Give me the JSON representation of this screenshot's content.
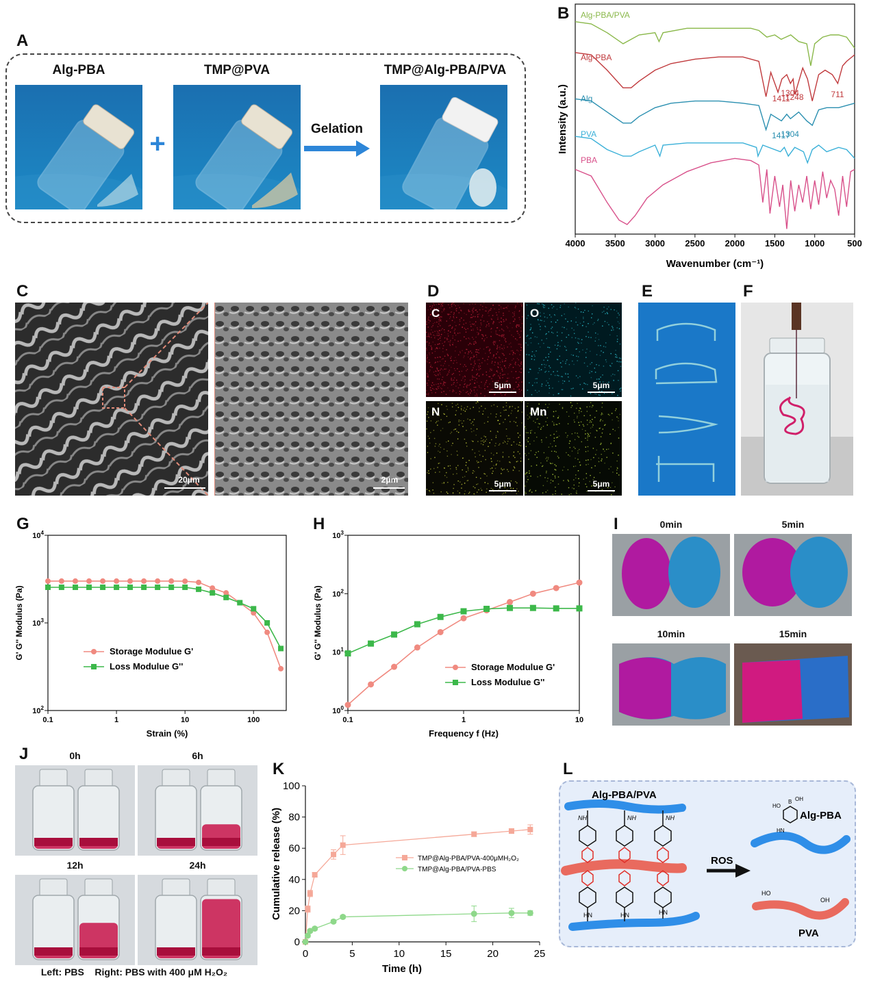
{
  "panels": {
    "A": {
      "letter": "A",
      "vial1": "Alg-PBA",
      "plus": "+",
      "vial2": "TMP@PVA",
      "arrow_label": "Gelation",
      "vial3": "TMP@Alg-PBA/PVA"
    },
    "B": {
      "letter": "B"
    },
    "C": {
      "letter": "C",
      "scale1": "20μm",
      "scale2": "2μm"
    },
    "D": {
      "letter": "D",
      "maps": [
        {
          "element": "C",
          "scale": "5μm",
          "color": "#c0203a"
        },
        {
          "element": "O",
          "scale": "5μm",
          "color": "#30c8d8"
        },
        {
          "element": "N",
          "scale": "5μm",
          "color": "#d8e040"
        },
        {
          "element": "Mn",
          "scale": "5μm",
          "color": "#c0e040"
        }
      ]
    },
    "E": {
      "letter": "E"
    },
    "F": {
      "letter": "F"
    },
    "G": {
      "letter": "G"
    },
    "H": {
      "letter": "H"
    },
    "I": {
      "letter": "I",
      "times": [
        "0min",
        "5min",
        "10min",
        "15min"
      ]
    },
    "J": {
      "letter": "J",
      "times": [
        "0h",
        "6h",
        "12h",
        "24h"
      ],
      "caption": "Left: PBS    Right: PBS with 400 μM H₂O₂"
    },
    "K": {
      "letter": "K"
    },
    "L": {
      "letter": "L",
      "network_label": "Alg-PBA/PVA",
      "arrow_label": "ROS",
      "product1": "Alg-PBA",
      "product2": "PVA",
      "groups": {
        "nh": "NH",
        "hn": "HN",
        "ho": "HO",
        "oh": "OH",
        "b": "B"
      }
    }
  },
  "colors": {
    "alg_pba_pva": "#8ab84a",
    "alg_pba": "#c0393c",
    "alg": "#2a8fb0",
    "pva": "#3ab0d8",
    "pba": "#d8508a",
    "storage": "#f08a80",
    "loss": "#3cb84a",
    "release_h2o2": "#f5a898",
    "release_pbs": "#8ed88a"
  },
  "chart_data": [
    {
      "id": "B",
      "type": "line",
      "xlabel": "Wavenumber (cm⁻¹)",
      "ylabel": "Intensity (a.u.)",
      "xlim": [
        4000,
        500
      ],
      "x_ticks": [
        4000,
        3500,
        3000,
        2500,
        2000,
        1500,
        1000,
        500
      ],
      "series": [
        {
          "name": "Alg-PBA/PVA",
          "x": [
            4000,
            3800,
            3600,
            3400,
            3200,
            3000,
            2950,
            2900,
            2600,
            2200,
            1800,
            1700,
            1600,
            1500,
            1420,
            1300,
            1200,
            1100,
            1050,
            1000,
            900,
            800,
            700,
            600,
            500
          ],
          "y": [
            0.92,
            0.91,
            0.87,
            0.82,
            0.86,
            0.87,
            0.83,
            0.87,
            0.89,
            0.89,
            0.89,
            0.88,
            0.85,
            0.86,
            0.84,
            0.86,
            0.83,
            0.82,
            0.72,
            0.82,
            0.85,
            0.86,
            0.86,
            0.85,
            0.8
          ]
        },
        {
          "name": "Alg-PBA",
          "x": [
            4000,
            3800,
            3600,
            3400,
            3300,
            3200,
            3000,
            2800,
            2500,
            2200,
            1900,
            1700,
            1610,
            1550,
            1460,
            1411,
            1350,
            1304,
            1270,
            1248,
            1150,
            1090,
            1030,
            950,
            870,
            780,
            711,
            650,
            600,
            500
          ],
          "y": [
            0.78,
            0.77,
            0.7,
            0.62,
            0.62,
            0.65,
            0.7,
            0.73,
            0.75,
            0.76,
            0.76,
            0.74,
            0.58,
            0.69,
            0.6,
            0.66,
            0.68,
            0.64,
            0.66,
            0.59,
            0.71,
            0.66,
            0.56,
            0.68,
            0.7,
            0.68,
            0.64,
            0.72,
            0.74,
            0.77
          ]
        },
        {
          "name": "Alg",
          "x": [
            4000,
            3800,
            3600,
            3400,
            3300,
            3200,
            3000,
            2800,
            2500,
            2200,
            1900,
            1700,
            1610,
            1550,
            1417,
            1350,
            1304,
            1200,
            1100,
            1030,
            950,
            850,
            700,
            600,
            500
          ],
          "y": [
            0.57,
            0.56,
            0.51,
            0.46,
            0.46,
            0.49,
            0.53,
            0.55,
            0.56,
            0.56,
            0.55,
            0.54,
            0.43,
            0.5,
            0.47,
            0.5,
            0.48,
            0.51,
            0.47,
            0.45,
            0.52,
            0.53,
            0.53,
            0.54,
            0.55
          ]
        },
        {
          "name": "PVA",
          "x": [
            4000,
            3800,
            3600,
            3400,
            3300,
            3200,
            3000,
            2940,
            2900,
            2600,
            2200,
            1900,
            1730,
            1710,
            1650,
            1430,
            1380,
            1330,
            1250,
            1140,
            1090,
            1030,
            950,
            850,
            700,
            600,
            500
          ],
          "y": [
            0.4,
            0.39,
            0.34,
            0.31,
            0.31,
            0.33,
            0.36,
            0.31,
            0.36,
            0.37,
            0.37,
            0.37,
            0.35,
            0.31,
            0.36,
            0.33,
            0.35,
            0.31,
            0.35,
            0.33,
            0.28,
            0.34,
            0.36,
            0.33,
            0.35,
            0.34,
            0.3
          ]
        },
        {
          "name": "PBA",
          "x": [
            4000,
            3800,
            3600,
            3450,
            3350,
            3250,
            3100,
            2900,
            2600,
            2300,
            2000,
            1800,
            1700,
            1650,
            1600,
            1560,
            1500,
            1440,
            1400,
            1350,
            1300,
            1250,
            1200,
            1150,
            1100,
            1050,
            1000,
            950,
            900,
            850,
            800,
            750,
            700,
            650,
            600,
            550,
            500
          ],
          "y": [
            0.25,
            0.22,
            0.1,
            0.02,
            0.0,
            0.04,
            0.12,
            0.18,
            0.24,
            0.28,
            0.3,
            0.29,
            0.27,
            0.1,
            0.25,
            0.05,
            0.22,
            0.08,
            0.18,
            -0.02,
            0.2,
            0.06,
            0.18,
            0.1,
            0.22,
            0.07,
            0.2,
            0.09,
            0.24,
            0.12,
            0.2,
            0.16,
            0.04,
            0.22,
            0.08,
            0.24,
            0.25
          ]
        }
      ],
      "annotations": [
        {
          "text": "1411",
          "x": 1411,
          "series": "Alg-PBA"
        },
        {
          "text": "1304",
          "x": 1304,
          "series": "Alg-PBA"
        },
        {
          "text": "1248",
          "x": 1248,
          "series": "Alg-PBA"
        },
        {
          "text": "711",
          "x": 711,
          "series": "Alg-PBA"
        },
        {
          "text": "1417",
          "x": 1417,
          "series": "Alg"
        },
        {
          "text": "1304",
          "x": 1304,
          "series": "Alg"
        }
      ]
    },
    {
      "id": "G",
      "type": "line",
      "xlabel": "Strain  (%)",
      "ylabel": "G' G'' Modulus (Pa)",
      "xscale": "log",
      "yscale": "log",
      "xlim": [
        0.1,
        300
      ],
      "ylim": [
        100,
        10000
      ],
      "x_ticks": [
        0.1,
        1,
        10,
        100
      ],
      "y_ticks": [
        100,
        1000,
        10000
      ],
      "legend": "center-left",
      "series": [
        {
          "name": "Storage Modulue G'",
          "x": [
            0.1,
            0.158,
            0.251,
            0.398,
            0.631,
            1,
            1.58,
            2.51,
            3.98,
            6.31,
            10,
            15.8,
            25.1,
            39.8,
            63.1,
            100,
            158,
            250
          ],
          "y": [
            3000,
            3000,
            3000,
            3000,
            3000,
            3000,
            3000,
            3000,
            3000,
            3000,
            2990,
            2900,
            2500,
            2200,
            1700,
            1300,
            780,
            300
          ]
        },
        {
          "name": "Loss Modulue G''",
          "x": [
            0.1,
            0.158,
            0.251,
            0.398,
            0.631,
            1,
            1.58,
            2.51,
            3.98,
            6.31,
            10,
            15.8,
            25.1,
            39.8,
            63.1,
            100,
            158,
            250
          ],
          "y": [
            2550,
            2550,
            2550,
            2550,
            2550,
            2550,
            2550,
            2550,
            2550,
            2550,
            2550,
            2420,
            2200,
            1950,
            1700,
            1450,
            1000,
            510
          ]
        }
      ]
    },
    {
      "id": "H",
      "type": "line",
      "xlabel": "Frequency f (Hz)",
      "ylabel": "G' G'' Modulus (Pa)",
      "xscale": "log",
      "yscale": "log",
      "xlim": [
        0.1,
        10
      ],
      "ylim": [
        1,
        1000
      ],
      "x_ticks": [
        0.1,
        1,
        10
      ],
      "y_ticks": [
        1,
        10,
        100,
        1000
      ],
      "legend": "lower-right",
      "series": [
        {
          "name": "Storage Modulue G'",
          "x": [
            0.1,
            0.158,
            0.251,
            0.398,
            0.631,
            1,
            1.58,
            2.51,
            3.98,
            6.31,
            10
          ],
          "y": [
            1.25,
            2.8,
            5.6,
            12,
            22,
            38,
            52,
            72,
            100,
            125,
            155
          ]
        },
        {
          "name": "Loss Modulue G''",
          "x": [
            0.1,
            0.158,
            0.251,
            0.398,
            0.631,
            1,
            1.58,
            2.51,
            3.98,
            6.31,
            10
          ],
          "y": [
            9.5,
            14,
            20,
            30,
            40,
            50,
            55,
            57,
            57,
            56,
            56
          ]
        }
      ]
    },
    {
      "id": "K",
      "type": "line",
      "xlabel": "Time (h)",
      "ylabel": "Cumulative release (%)",
      "xlim": [
        0,
        25
      ],
      "ylim": [
        0,
        100
      ],
      "x_ticks": [
        0,
        5,
        10,
        15,
        20,
        25
      ],
      "y_ticks": [
        0,
        20,
        40,
        60,
        80,
        100
      ],
      "legend": "center-right",
      "series": [
        {
          "name": "TMP@Alg-PBA/PVA-400μMH₂O₂",
          "x": [
            0,
            0.25,
            0.5,
            1,
            3,
            4,
            18,
            22,
            24
          ],
          "y": [
            0,
            21,
            31,
            43,
            56,
            62,
            69,
            71,
            72
          ],
          "err": [
            0,
            2,
            2,
            1.5,
            3,
            6,
            1.5,
            1.5,
            3
          ]
        },
        {
          "name": "TMP@Alg-PBA/PVA-PBS",
          "x": [
            0,
            0.25,
            0.5,
            1,
            3,
            4,
            18,
            22,
            24
          ],
          "y": [
            0,
            4,
            7,
            8.5,
            13,
            16,
            18,
            18.5,
            18.5
          ],
          "err": [
            0,
            1,
            1,
            1,
            1,
            1,
            5,
            3,
            1.5
          ]
        }
      ]
    }
  ]
}
